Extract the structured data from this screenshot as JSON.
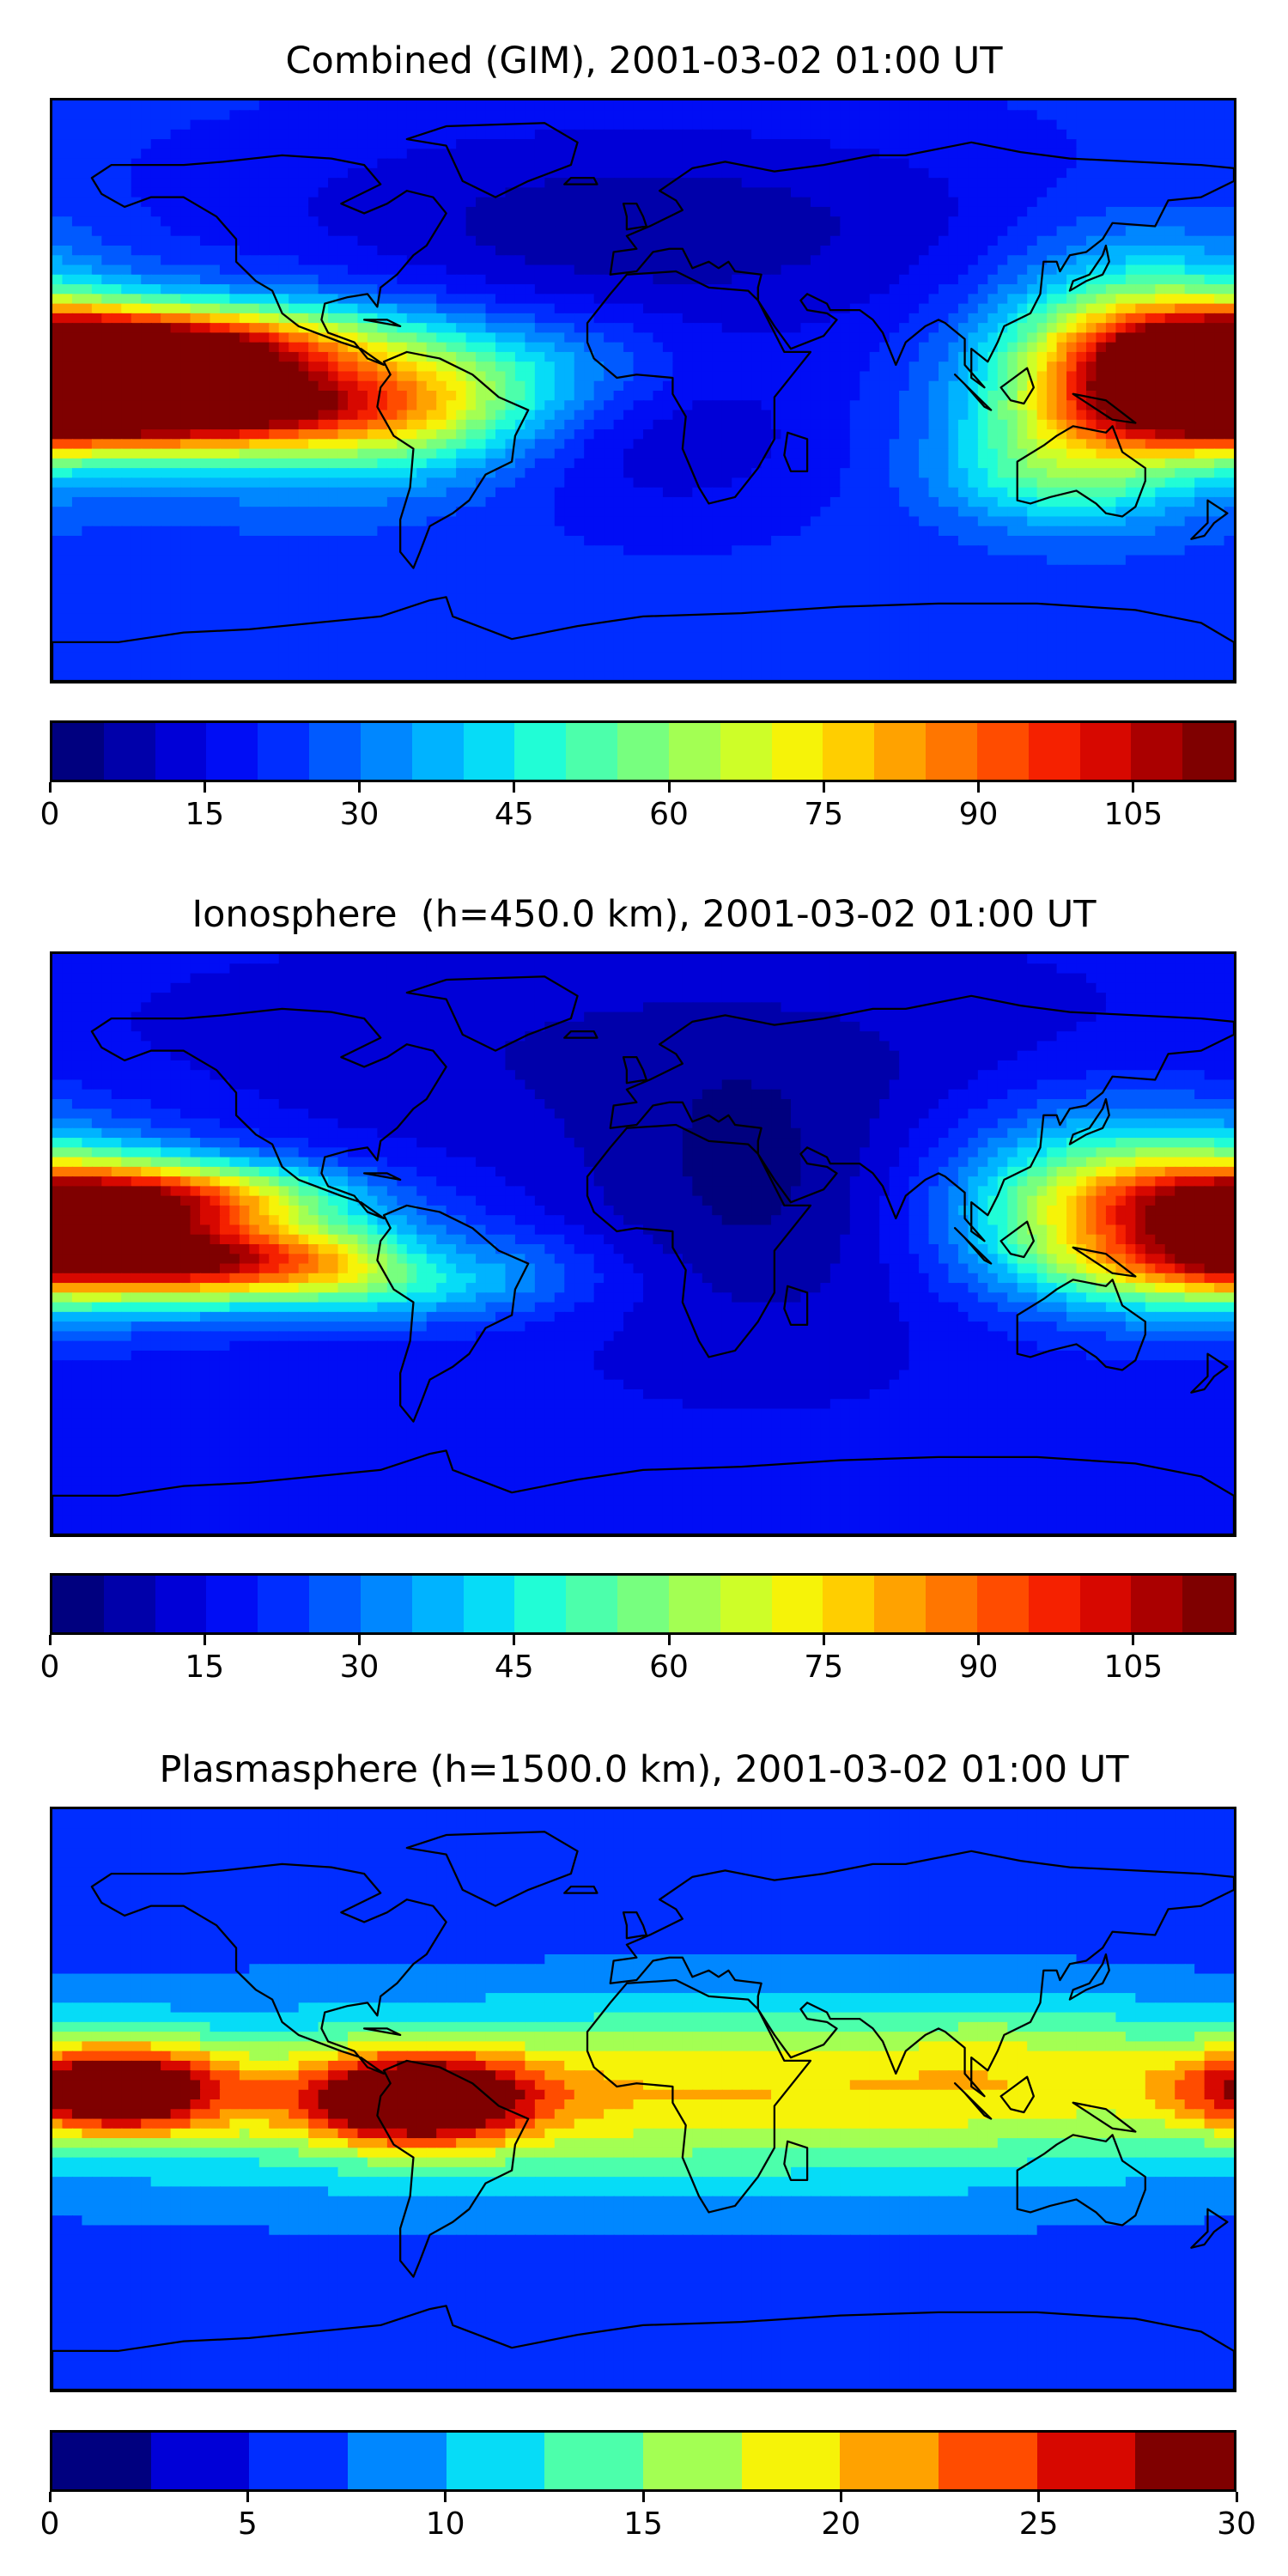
{
  "panels": [
    {
      "title": "Combined (GIM), 2001-03-02 01:00 UT",
      "colorbar": {
        "min": 0,
        "max": 115,
        "levels": 23,
        "ticks": [
          "0",
          "15",
          "30",
          "45",
          "60",
          "75",
          "90",
          "105"
        ],
        "tick_values": [
          0,
          15,
          30,
          45,
          60,
          75,
          90,
          105
        ]
      },
      "field": {
        "base": 22,
        "blobs": [
          {
            "lon": -150,
            "lat": -5,
            "amp": 85,
            "slon": 45,
            "slat": 9
          },
          {
            "lon": -150,
            "lat": 14,
            "amp": 70,
            "slon": 40,
            "slat": 8
          },
          {
            "lon": -105,
            "lat": 0,
            "amp": 35,
            "slon": 35,
            "slat": 20
          },
          {
            "lon": -65,
            "lat": -5,
            "amp": 25,
            "slon": 25,
            "slat": 14
          },
          {
            "lon": -30,
            "lat": 8,
            "amp": 15,
            "slon": 30,
            "slat": 12
          },
          {
            "lon": 175,
            "lat": 5,
            "amp": 60,
            "slon": 35,
            "slat": 15
          },
          {
            "lon": 150,
            "lat": 10,
            "amp": 40,
            "slon": 30,
            "slat": 25
          },
          {
            "lon": 125,
            "lat": -25,
            "amp": 25,
            "slon": 25,
            "slat": 12
          },
          {
            "lon": 0,
            "lat": 50,
            "amp": -15,
            "slon": 90,
            "slat": 25
          },
          {
            "lon": 10,
            "lat": -15,
            "amp": -10,
            "slon": 35,
            "slat": 20
          }
        ]
      }
    },
    {
      "title": "Ionosphere  (h=450.0 km), 2001-03-02 01:00 UT",
      "colorbar": {
        "min": 0,
        "max": 115,
        "levels": 23,
        "ticks": [
          "0",
          "15",
          "30",
          "45",
          "60",
          "75",
          "90",
          "105"
        ],
        "tick_values": [
          0,
          15,
          30,
          45,
          60,
          75,
          90,
          105
        ]
      },
      "field": {
        "base": 16,
        "blobs": [
          {
            "lon": -145,
            "lat": -5,
            "amp": 70,
            "slon": 45,
            "slat": 8
          },
          {
            "lon": -150,
            "lat": 14,
            "amp": 65,
            "slon": 40,
            "slat": 8
          },
          {
            "lon": -80,
            "lat": -10,
            "amp": 30,
            "slon": 40,
            "slat": 10
          },
          {
            "lon": -65,
            "lat": -5,
            "amp": -12,
            "slon": 15,
            "slat": 6
          },
          {
            "lon": 175,
            "lat": 5,
            "amp": 50,
            "slon": 40,
            "slat": 18
          },
          {
            "lon": 140,
            "lat": 15,
            "amp": 30,
            "slon": 35,
            "slat": 20
          },
          {
            "lon": 35,
            "lat": 15,
            "amp": -12,
            "slon": 40,
            "slat": 30
          },
          {
            "lon": 0,
            "lat": 60,
            "amp": -6,
            "slon": 90,
            "slat": 20
          }
        ]
      }
    },
    {
      "title": "Plasmasphere (h=1500.0 km), 2001-03-02 01:00 UT",
      "colorbar": {
        "min": 0,
        "max": 30,
        "levels": 12,
        "ticks": [
          "0",
          "5",
          "10",
          "15",
          "20",
          "25",
          "30"
        ],
        "tick_values": [
          0,
          5,
          10,
          15,
          20,
          25,
          30
        ]
      },
      "field": {
        "base": 6,
        "blobs": [
          {
            "lon": -160,
            "lat": 3,
            "amp": 22,
            "slon": 25,
            "slat": 10
          },
          {
            "lon": -70,
            "lat": 0,
            "amp": 22,
            "slon": 25,
            "slat": 10
          },
          {
            "lon": 0,
            "lat": 0,
            "amp": 10,
            "slon": 180,
            "slat": 22
          },
          {
            "lon": 20,
            "lat": 5,
            "amp": 4,
            "slon": 60,
            "slat": 15
          },
          {
            "lon": 120,
            "lat": 10,
            "amp": 5,
            "slon": 40,
            "slat": 15
          }
        ]
      }
    }
  ],
  "colormap": [
    "#00007f",
    "#0000b7",
    "#0000f1",
    "#0028ff",
    "#0062ff",
    "#009cff",
    "#00d4ff",
    "#23ffd4",
    "#5bff9c",
    "#93ff62",
    "#ccff2a",
    "#fff000",
    "#ffb600",
    "#ff7e00",
    "#ff4700",
    "#f10f00",
    "#b70000",
    "#7f0000"
  ],
  "continent_color": "#000000"
}
